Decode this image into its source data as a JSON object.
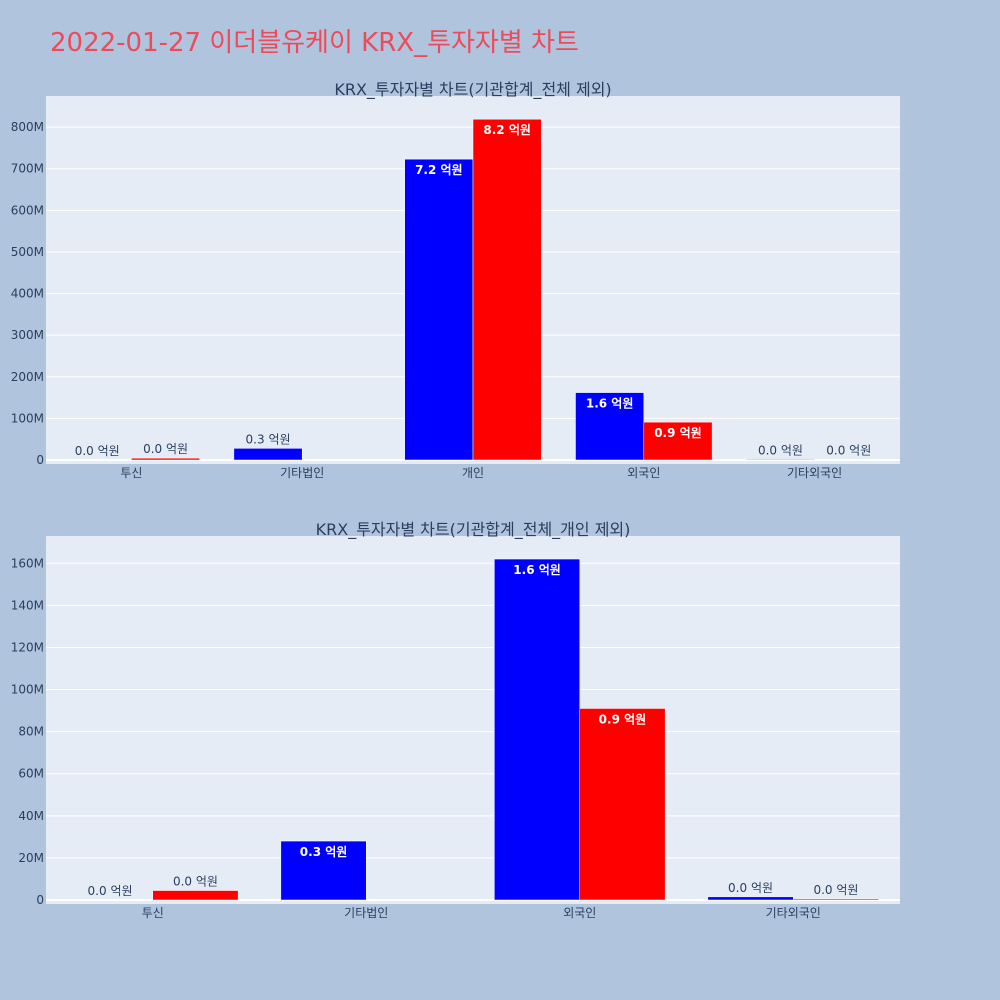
{
  "page_title": "2022-01-27 이더블유케이 KRX_투자자별 차트",
  "chart_data": [
    {
      "type": "bar",
      "title": "KRX_투자자별 차트(기관합계_전체 제외)",
      "categories": [
        "투신",
        "기타법인",
        "개인",
        "외국인",
        "기타외국인"
      ],
      "series": [
        {
          "color": "#0000ff",
          "values": [
            0,
            28000000,
            723000000,
            162000000,
            1500000
          ],
          "labels": [
            "0.0 억원",
            "0.3 억원",
            "7.2 억원",
            "1.6 억원",
            "0.0 억원"
          ]
        },
        {
          "color": "#ff0000",
          "values": [
            4500000,
            0,
            819000000,
            91000000,
            1000000
          ],
          "labels": [
            "0.0 억원",
            "",
            "8.2 억원",
            "0.9 억원",
            "0.0 억원"
          ]
        }
      ],
      "yticks": [
        0,
        100000000,
        200000000,
        300000000,
        400000000,
        500000000,
        600000000,
        700000000,
        800000000
      ],
      "ytick_labels": [
        "0",
        "100M",
        "200M",
        "300M",
        "400M",
        "500M",
        "600M",
        "700M",
        "800M"
      ],
      "ylim": [
        0,
        870000000
      ],
      "grid": true
    },
    {
      "type": "bar",
      "title": "KRX_투자자별 차트(기관합계_전체_개인 제외)",
      "categories": [
        "투신",
        "기타법인",
        "외국인",
        "기타외국인"
      ],
      "series": [
        {
          "color": "#0000ff",
          "values": [
            0,
            28000000,
            162000000,
            1500000
          ],
          "labels": [
            "0.0 억원",
            "0.3 억원",
            "1.6 억원",
            "0.0 억원"
          ]
        },
        {
          "color": "#ff0000",
          "values": [
            4500000,
            0,
            91000000,
            500000
          ],
          "labels": [
            "0.0 억원",
            "",
            "0.9 억원",
            "0.0 억원"
          ]
        }
      ],
      "yticks": [
        0,
        20000000,
        40000000,
        60000000,
        80000000,
        100000000,
        120000000,
        140000000,
        160000000
      ],
      "ytick_labels": [
        "0",
        "20M",
        "40M",
        "60M",
        "80M",
        "100M",
        "120M",
        "140M",
        "160M"
      ],
      "ylim": [
        0,
        172000000
      ],
      "grid": true
    }
  ],
  "colors": {
    "background": "#b0c4de",
    "plot_bg": "#e5ecf6",
    "title": "#ee4b5a",
    "text": "#2a3f5f",
    "buy": "#0000ff",
    "sell": "#ff0000"
  }
}
